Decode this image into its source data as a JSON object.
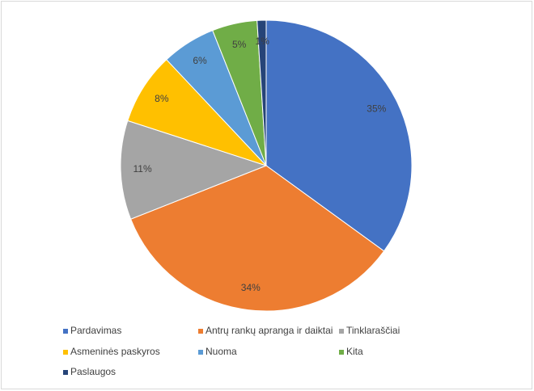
{
  "chart_data": {
    "type": "pie",
    "categories": [
      "Pardavimas",
      "Antrų rankų apranga ir daiktai",
      "Tinklaraščiai",
      "Asmeninės paskyros",
      "Nuoma",
      "Kita",
      "Paslaugos"
    ],
    "values": [
      35,
      34,
      11,
      8,
      6,
      5,
      1
    ],
    "value_labels": [
      "35%",
      "34%",
      "11%",
      "8%",
      "6%",
      "5%",
      "1%"
    ],
    "colors": [
      "#4472c4",
      "#ed7d31",
      "#a5a5a5",
      "#ffc000",
      "#5b9bd5",
      "#70ad47",
      "#264478"
    ],
    "legend": "bottom"
  }
}
